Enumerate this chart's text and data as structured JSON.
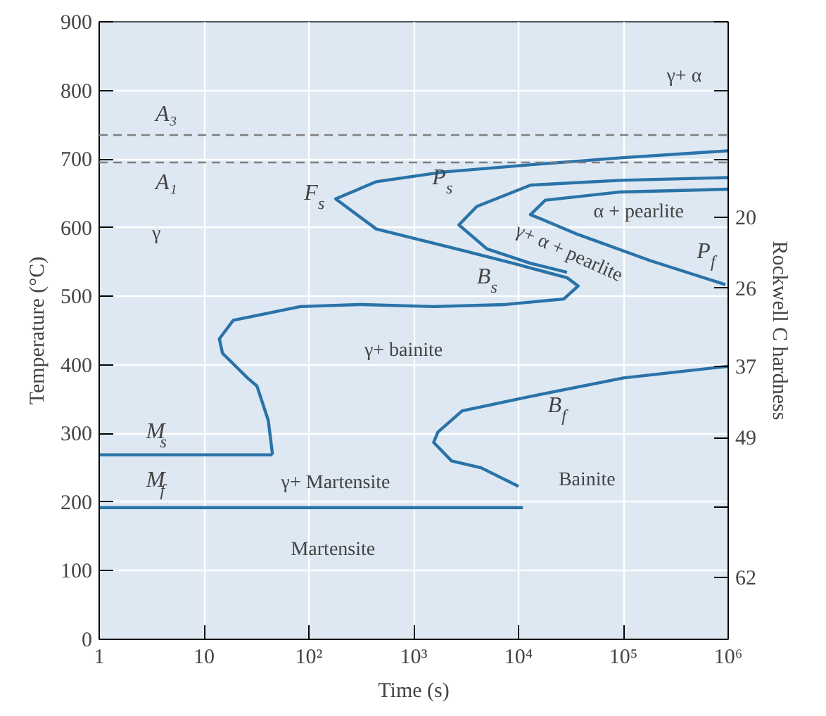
{
  "chart_data": {
    "type": "line",
    "xlabel": "Time (s)",
    "ylabel": "Temperature (°C)",
    "y2label": "Rockwell C hardness",
    "log": "x",
    "grid": true,
    "xlim": [
      1,
      1000000
    ],
    "xticks": [
      1,
      10,
      {
        "value": 100,
        "label": "10²"
      },
      {
        "value": 1000,
        "label": "10³"
      },
      {
        "value": 10000,
        "label": "10⁴"
      },
      {
        "value": 100000,
        "label": "10⁵"
      },
      {
        "value": 1000000,
        "label": "10⁶"
      }
    ],
    "ylim": [
      0,
      900
    ],
    "yticks": [
      0,
      100,
      200,
      300,
      400,
      500,
      600,
      700,
      800,
      900
    ],
    "ref_lines": [
      {
        "axis": "y",
        "value": 735,
        "label": "A₃",
        "color": "#808080",
        "line_style": "dashed"
      },
      {
        "axis": "y",
        "value": 695,
        "label": "A₁",
        "color": "#808080",
        "line_style": "dashed"
      }
    ],
    "series": [
      {
        "color": "#2a73a8",
        "x": [
          1000000,
          100000,
          14000,
          1900,
          440,
          180,
          440,
          2900,
          8900,
          29000,
          37000,
          27000,
          7500,
          1550,
          320,
          83,
          19,
          14,
          15,
          26,
          32,
          41,
          45
        ],
        "values": [
          712,
          702,
          692,
          681,
          667,
          642,
          598,
          567,
          548,
          527,
          515,
          496,
          488,
          485,
          488,
          485,
          465,
          438,
          417,
          381,
          369,
          319,
          269
        ]
      },
      {
        "color": "#2a73a8",
        "x": [
          1000000,
          94000,
          13000,
          4000,
          2700,
          5000,
          13000,
          29000
        ],
        "values": [
          673,
          669,
          662,
          631,
          604,
          569,
          548,
          535
        ]
      },
      {
        "color": "#2a73a8",
        "x": [
          1000000,
          94000,
          18000,
          13000,
          37000,
          180000,
          940000
        ],
        "values": [
          656,
          652,
          640,
          619,
          590,
          552,
          517
        ]
      },
      {
        "color": "#2a73a8",
        "x": [
          1000000,
          100000,
          13000,
          2900,
          1700,
          1550,
          2300,
          4400,
          10000
        ],
        "values": [
          398,
          381,
          354,
          333,
          302,
          287,
          260,
          250,
          223
        ]
      },
      {
        "color": "#2a73a8",
        "x": [
          1,
          45
        ],
        "values": [
          269,
          269
        ]
      },
      {
        "color": "#2a73a8",
        "x": [
          1,
          11000
        ],
        "values": [
          192,
          192
        ]
      }
    ],
    "annotations": [
      "γ",
      "F$_{s}$",
      "P$_{s}$",
      "B$_{s}$",
      "γ+ bainite",
      "M$_{s}$",
      "M$_{f}$",
      "γ+ Martensite",
      "Martensite",
      "B$_{f}$",
      "Bainite",
      "γ+ α",
      "α + pearlite",
      "γ+ α + pearlite",
      "P$_{f}$",
      "20",
      "26",
      "37",
      "49",
      "62"
    ]
  }
}
